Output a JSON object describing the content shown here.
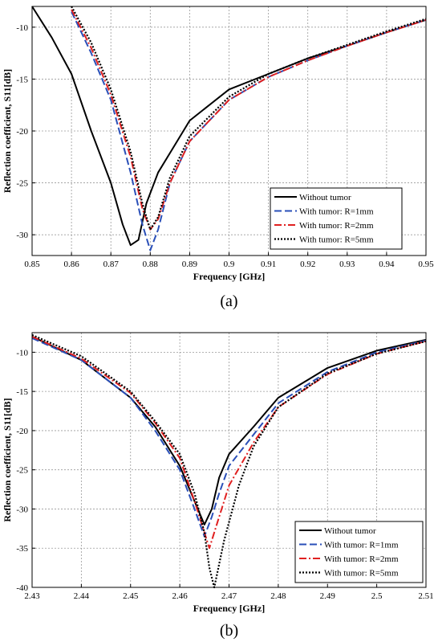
{
  "chart_data": [
    {
      "type": "line",
      "caption": "(a)",
      "xlabel": "Frequency [GHz]",
      "ylabel": "Reflection coefficient, S11[dB]",
      "xlim": [
        0.85,
        0.95
      ],
      "ylim": [
        -32,
        -8
      ],
      "xticks": [
        0.85,
        0.86,
        0.87,
        0.88,
        0.89,
        0.9,
        0.91,
        0.92,
        0.93,
        0.94,
        0.95
      ],
      "xtick_labels": [
        "0.85",
        "0.86",
        "0.87",
        "0.88",
        "0.89",
        "0.9",
        "0.91",
        "0.92",
        "0.93",
        "0.94",
        "0.95"
      ],
      "yticks": [
        -30,
        -25,
        -20,
        -15,
        -10
      ],
      "ytick_labels": [
        "-30",
        "-25",
        "-20",
        "-15",
        "-10"
      ],
      "grid": true,
      "legend_position": "bottom-right",
      "series": [
        {
          "name": "Without tumor",
          "color": "#000000",
          "style": "solid",
          "x": [
            0.85,
            0.855,
            0.86,
            0.865,
            0.87,
            0.873,
            0.875,
            0.877,
            0.879,
            0.882,
            0.886,
            0.89,
            0.9,
            0.91,
            0.92,
            0.93,
            0.94,
            0.95
          ],
          "y": [
            -8,
            -11,
            -14.5,
            -20,
            -25,
            -29,
            -31,
            -30.5,
            -27,
            -24,
            -21.5,
            -19,
            -16,
            -14.5,
            -13,
            -11.8,
            -10.5,
            -9.3
          ]
        },
        {
          "name": "With tumor: R=1mm",
          "color": "#2a4fb8",
          "style": "dashed",
          "x": [
            0.86,
            0.865,
            0.87,
            0.875,
            0.878,
            0.88,
            0.882,
            0.885,
            0.89,
            0.9,
            0.91,
            0.92,
            0.93,
            0.94,
            0.95
          ],
          "y": [
            -8.5,
            -12.5,
            -17,
            -24,
            -29,
            -31.5,
            -29.5,
            -25,
            -21,
            -17,
            -14.8,
            -13.2,
            -11.8,
            -10.5,
            -9.3
          ]
        },
        {
          "name": "With tumor: R=2mm",
          "color": "#e02020",
          "style": "dashdot",
          "x": [
            0.86,
            0.865,
            0.87,
            0.875,
            0.878,
            0.88,
            0.882,
            0.885,
            0.89,
            0.9,
            0.91,
            0.92,
            0.93,
            0.94,
            0.95
          ],
          "y": [
            -8.3,
            -12,
            -16.5,
            -22.5,
            -27.5,
            -29.5,
            -28.5,
            -25,
            -21,
            -17,
            -14.8,
            -13.2,
            -11.8,
            -10.5,
            -9.3
          ]
        },
        {
          "name": "With tumor: R=5mm",
          "color": "#000000",
          "style": "dotted",
          "x": [
            0.86,
            0.865,
            0.87,
            0.875,
            0.878,
            0.88,
            0.882,
            0.885,
            0.89,
            0.9,
            0.91,
            0.92,
            0.93,
            0.94,
            0.95
          ],
          "y": [
            -8,
            -11.5,
            -16,
            -22,
            -27,
            -29.5,
            -28.3,
            -24.5,
            -20.5,
            -16.7,
            -14.5,
            -13,
            -11.7,
            -10.4,
            -9.2
          ]
        }
      ]
    },
    {
      "type": "line",
      "caption": "(b)",
      "xlabel": "Frequency [GHz]",
      "ylabel": "Reflection coefficient, S11[dB]",
      "xlim": [
        2.43,
        2.51
      ],
      "ylim": [
        -40,
        -7.5
      ],
      "xticks": [
        2.43,
        2.44,
        2.45,
        2.46,
        2.47,
        2.48,
        2.49,
        2.5,
        2.51
      ],
      "xtick_labels": [
        "2.43",
        "2.44",
        "2.45",
        "2.46",
        "2.47",
        "2.48",
        "2.49",
        "2.5",
        "2.51"
      ],
      "yticks": [
        -40,
        -35,
        -30,
        -25,
        -20,
        -15,
        -10
      ],
      "ytick_labels": [
        "-40",
        "-35",
        "-30",
        "-25",
        "-20",
        "-15",
        "-10"
      ],
      "grid": true,
      "legend_position": "bottom-right",
      "series": [
        {
          "name": "Without tumor",
          "color": "#000000",
          "style": "solid",
          "x": [
            2.43,
            2.44,
            2.45,
            2.455,
            2.46,
            2.463,
            2.465,
            2.4665,
            2.468,
            2.47,
            2.475,
            2.48,
            2.49,
            2.5,
            2.51
          ],
          "y": [
            -8,
            -11,
            -15.8,
            -19.5,
            -24.5,
            -29,
            -32,
            -30,
            -26,
            -23,
            -19.5,
            -15.8,
            -12,
            -9.8,
            -8.4
          ]
        },
        {
          "name": "With tumor: R=1mm",
          "color": "#2a4fb8",
          "style": "dashed",
          "x": [
            2.43,
            2.44,
            2.45,
            2.455,
            2.46,
            2.463,
            2.465,
            2.4665,
            2.468,
            2.47,
            2.475,
            2.48,
            2.49,
            2.5,
            2.51
          ],
          "y": [
            -8.2,
            -11,
            -15.8,
            -20,
            -25,
            -30,
            -33.5,
            -31,
            -28,
            -24.5,
            -20.5,
            -16.5,
            -12.5,
            -10,
            -8.5
          ]
        },
        {
          "name": "With tumor: R=2mm",
          "color": "#e02020",
          "style": "dashdot",
          "x": [
            2.43,
            2.44,
            2.45,
            2.455,
            2.46,
            2.463,
            2.465,
            2.466,
            2.468,
            2.47,
            2.475,
            2.48,
            2.49,
            2.5,
            2.51
          ],
          "y": [
            -8,
            -10.8,
            -15.2,
            -19,
            -23.5,
            -29,
            -33,
            -35,
            -31,
            -27,
            -21.5,
            -17,
            -12.8,
            -10.2,
            -8.6
          ]
        },
        {
          "name": "With tumor: R=5mm",
          "color": "#000000",
          "style": "dotted",
          "x": [
            2.43,
            2.44,
            2.45,
            2.455,
            2.46,
            2.463,
            2.465,
            2.466,
            2.467,
            2.469,
            2.472,
            2.475,
            2.48,
            2.49,
            2.5,
            2.51
          ],
          "y": [
            -7.8,
            -10.5,
            -15,
            -18.8,
            -23,
            -28,
            -33,
            -37.5,
            -40,
            -34,
            -27,
            -22,
            -17,
            -12.7,
            -10.2,
            -8.6
          ]
        }
      ]
    }
  ]
}
